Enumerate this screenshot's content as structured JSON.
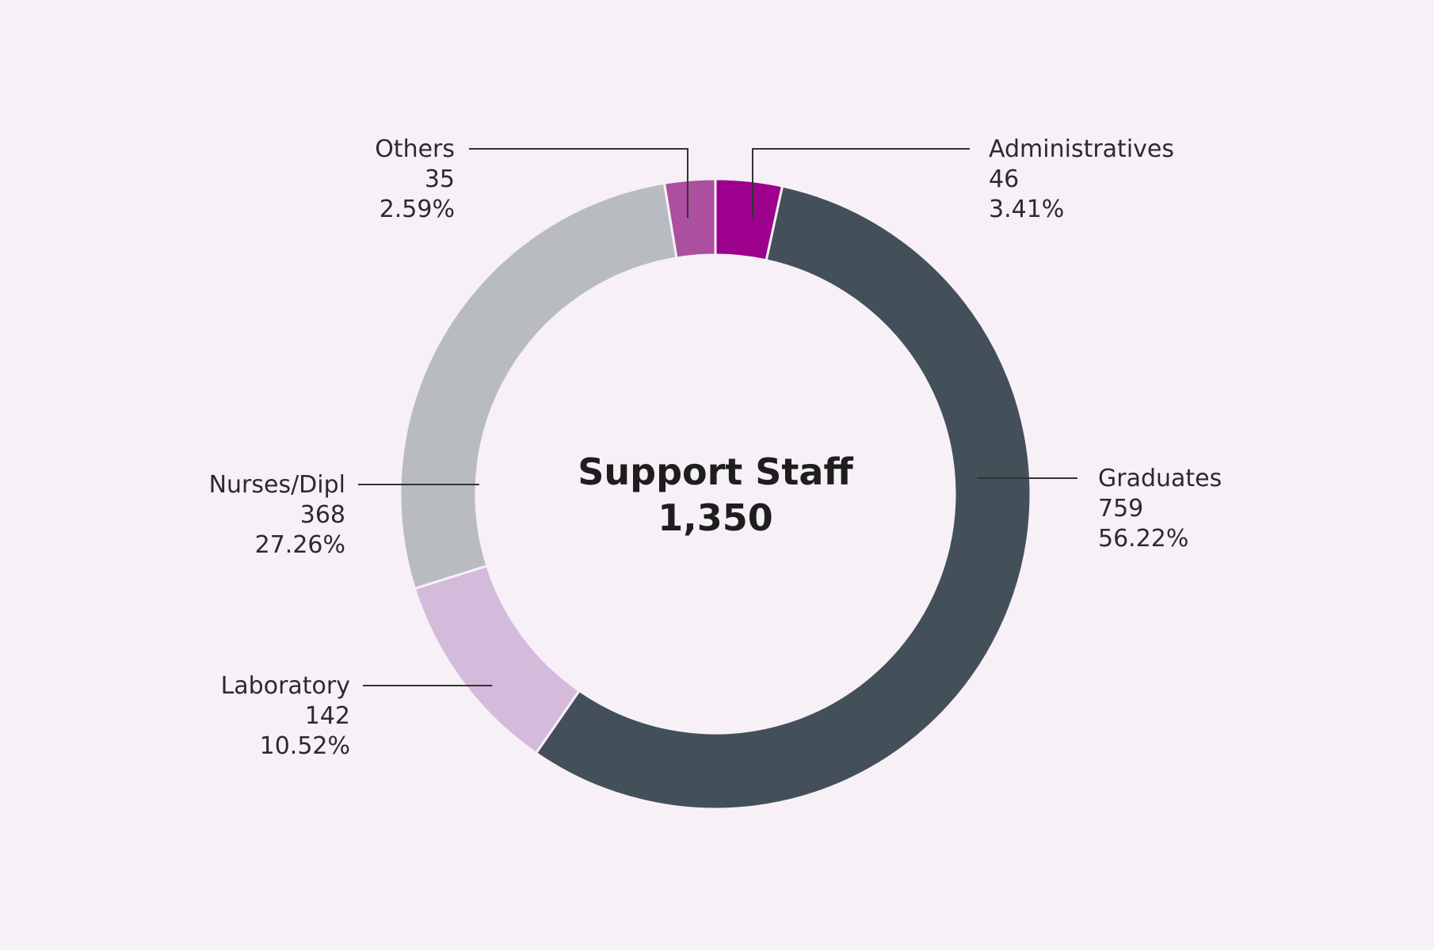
{
  "chart_data": {
    "type": "pie",
    "variant": "donut",
    "center_label": {
      "title": "Support Staff",
      "total": "1,350"
    },
    "slices": [
      {
        "name": "Administratives",
        "value": 46,
        "value_label": "46",
        "percent": "3.41%",
        "color": "#9e008e"
      },
      {
        "name": "Graduates",
        "value": 759,
        "value_label": "759",
        "percent": "56.22%",
        "color": "#435059"
      },
      {
        "name": "Laboratory",
        "value": 142,
        "value_label": "142",
        "percent": "10.52%",
        "color": "#d4bbdc"
      },
      {
        "name": "Nurses/Dipl",
        "value": 368,
        "value_label": "368",
        "percent": "27.26%",
        "color": "#b8bcc1"
      },
      {
        "name": "Others",
        "value": 35,
        "value_label": "35",
        "percent": "2.59%",
        "color": "#ad4f9f"
      }
    ],
    "legend": "none"
  }
}
